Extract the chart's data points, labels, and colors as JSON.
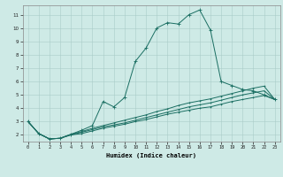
{
  "xlabel": "Humidex (Indice chaleur)",
  "bg_color": "#ceeae6",
  "grid_color": "#aaccc8",
  "line_color": "#1a6e62",
  "xlim": [
    -0.5,
    23.5
  ],
  "ylim": [
    1.5,
    11.7
  ],
  "xticks": [
    0,
    1,
    2,
    3,
    4,
    5,
    6,
    7,
    8,
    9,
    10,
    11,
    12,
    13,
    14,
    15,
    16,
    17,
    18,
    19,
    20,
    21,
    22,
    23
  ],
  "yticks": [
    2,
    3,
    4,
    5,
    6,
    7,
    8,
    9,
    10,
    11
  ],
  "line1_x": [
    0,
    1,
    2,
    3,
    4,
    5,
    6,
    7,
    8,
    9,
    10,
    11,
    12,
    13,
    14,
    15,
    16,
    17,
    18,
    19,
    20,
    21,
    22,
    23
  ],
  "line1_y": [
    3.0,
    2.1,
    1.7,
    1.75,
    2.05,
    2.35,
    2.7,
    4.5,
    4.1,
    4.8,
    7.5,
    8.5,
    10.0,
    10.4,
    10.3,
    11.0,
    11.35,
    9.85,
    6.0,
    5.7,
    5.4,
    5.3,
    5.0,
    4.65
  ],
  "line2_x": [
    0,
    1,
    2,
    3,
    4,
    5,
    6,
    7,
    8,
    9,
    10,
    11,
    12,
    13,
    14,
    15,
    16,
    17,
    18,
    19,
    20,
    21,
    22,
    23
  ],
  "line2_y": [
    3.0,
    2.1,
    1.7,
    1.75,
    2.05,
    2.25,
    2.5,
    2.7,
    2.9,
    3.1,
    3.3,
    3.5,
    3.75,
    3.95,
    4.2,
    4.4,
    4.55,
    4.7,
    4.9,
    5.1,
    5.3,
    5.5,
    5.65,
    4.65
  ],
  "line3_x": [
    0,
    1,
    2,
    3,
    4,
    5,
    6,
    7,
    8,
    9,
    10,
    11,
    12,
    13,
    14,
    15,
    16,
    17,
    18,
    19,
    20,
    21,
    22,
    23
  ],
  "line3_y": [
    3.0,
    2.1,
    1.7,
    1.75,
    2.0,
    2.2,
    2.4,
    2.6,
    2.75,
    2.9,
    3.1,
    3.3,
    3.5,
    3.7,
    3.9,
    4.1,
    4.25,
    4.4,
    4.6,
    4.8,
    5.0,
    5.15,
    5.3,
    4.65
  ],
  "line4_x": [
    0,
    1,
    2,
    3,
    4,
    5,
    6,
    7,
    8,
    9,
    10,
    11,
    12,
    13,
    14,
    15,
    16,
    17,
    18,
    19,
    20,
    21,
    22,
    23
  ],
  "line4_y": [
    3.0,
    2.1,
    1.7,
    1.75,
    2.0,
    2.1,
    2.3,
    2.5,
    2.65,
    2.8,
    3.0,
    3.15,
    3.35,
    3.55,
    3.7,
    3.85,
    4.0,
    4.1,
    4.3,
    4.5,
    4.65,
    4.8,
    4.95,
    4.65
  ]
}
